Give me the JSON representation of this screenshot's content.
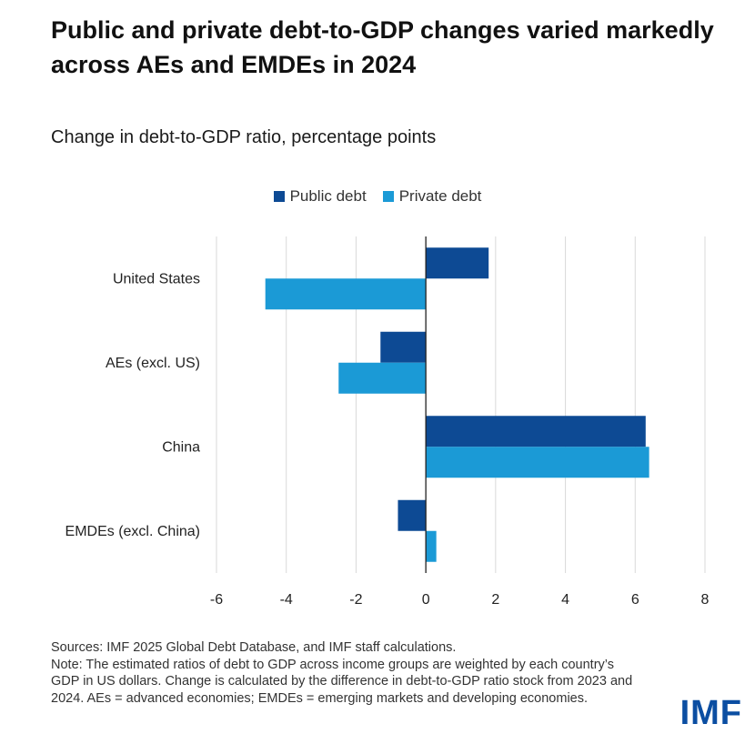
{
  "title": "Public and private debt-to-GDP changes varied markedly across AEs and EMDEs in 2024",
  "chart_data": {
    "type": "bar",
    "orientation": "horizontal",
    "title": "Public and private debt-to-GDP changes varied markedly across AEs and EMDEs in 2024",
    "subtitle": "Change in debt-to-GDP ratio, percentage points",
    "categories": [
      "United States",
      "AEs (excl. US)",
      "China",
      "EMDEs (excl. China)"
    ],
    "series": [
      {
        "name": "Public debt",
        "color": "#0d4a94",
        "values": [
          1.8,
          -1.3,
          6.3,
          -0.8
        ]
      },
      {
        "name": "Private debt",
        "color": "#1b9ad6",
        "values": [
          -4.6,
          -2.5,
          6.4,
          0.3
        ]
      }
    ],
    "xlim": [
      -6,
      8
    ],
    "xticks": [
      -6,
      -4,
      -2,
      0,
      2,
      4,
      6,
      8
    ],
    "xtick_labels": [
      "-6",
      "-4",
      "-2",
      "0",
      "2",
      "4",
      "6",
      "8"
    ],
    "xlabel": "",
    "ylabel": "",
    "grid": true,
    "legend_position": "top-center"
  },
  "notes": {
    "sources": "Sources: IMF 2025 Global Debt Database, and IMF staff calculations.",
    "note": "Note: The estimated ratios of debt to GDP across income groups are weighted by each country’s GDP in US dollars. Change is calculated by the difference in debt-to-GDP ratio stock from 2023 and 2024. AEs = advanced economies; EMDEs = emerging markets and developing economies."
  },
  "logo": "IMF"
}
